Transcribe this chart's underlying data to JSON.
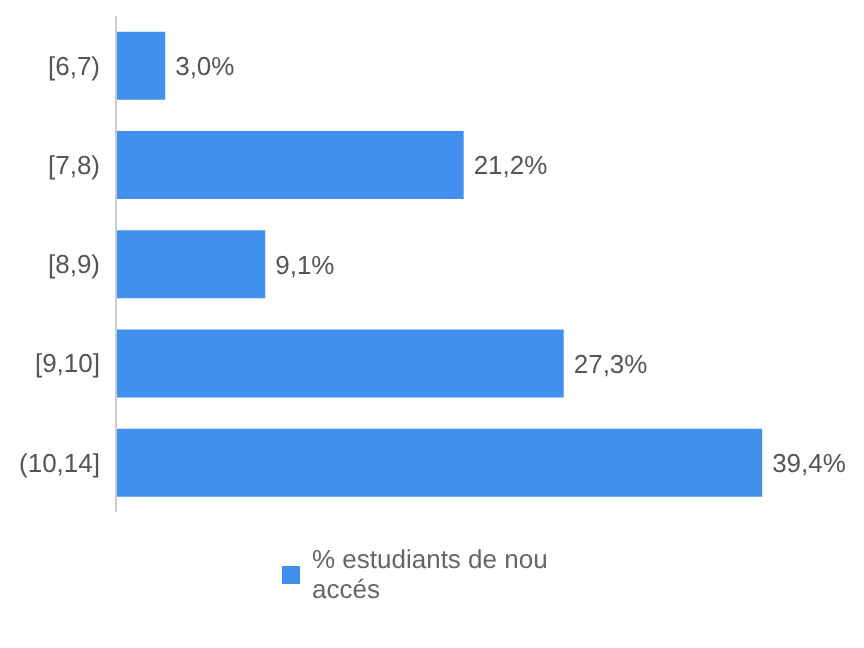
{
  "chart_data": {
    "type": "bar",
    "orientation": "horizontal",
    "categories": [
      "[6,7)",
      "[7,8)",
      "[8,9)",
      "[9,10]",
      "(10,14]"
    ],
    "series": [
      {
        "name": "% estudiants de nou accés",
        "color": "#4290ee",
        "values": [
          3.0,
          21.2,
          9.1,
          27.3,
          39.4
        ],
        "value_labels": [
          "3,0%",
          "21,2%",
          "9,1%",
          "27,3%",
          "39,4%"
        ]
      }
    ],
    "tick_labels": "y",
    "legend": "bottom"
  }
}
